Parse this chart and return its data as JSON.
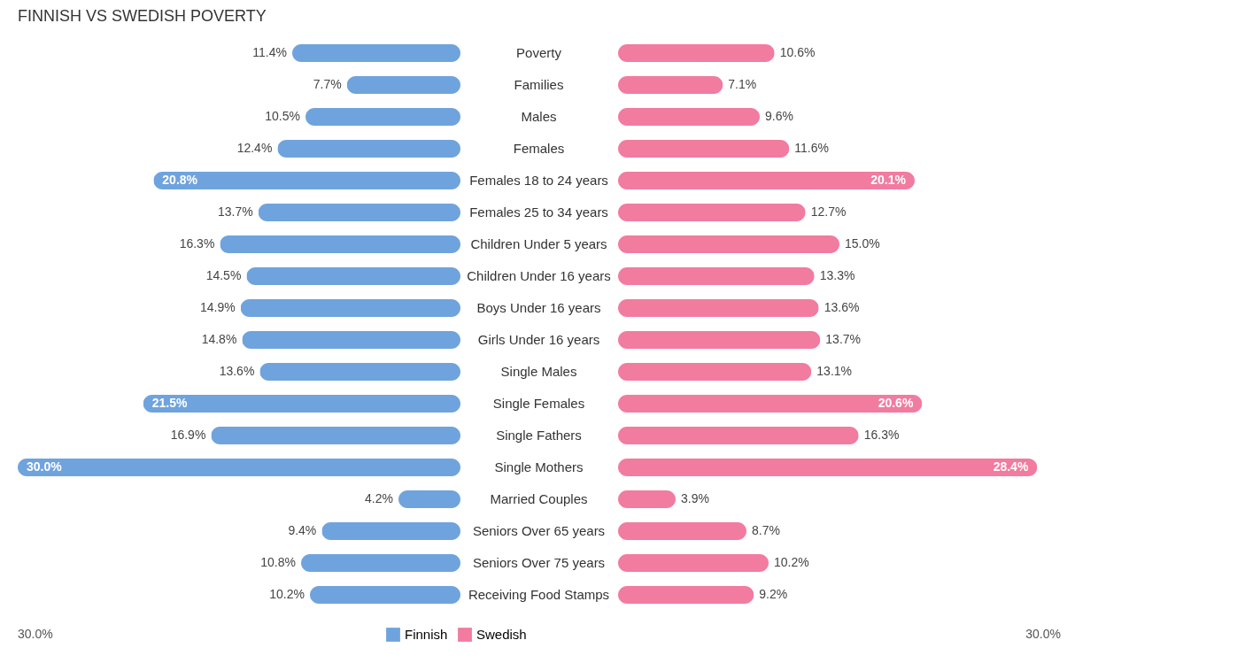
{
  "chart_data": [
    {
      "type": "bar",
      "orientation": "horizontal",
      "title": "FINNISH VS SWEDISH POVERTY",
      "categories": [
        "Poverty",
        "Families",
        "Males",
        "Females",
        "Females 18 to 24 years",
        "Females 25 to 34 years",
        "Children Under 5 years",
        "Children Under 16 years",
        "Boys Under 16 years",
        "Girls Under 16 years",
        "Single Males",
        "Single Females",
        "Single Fathers",
        "Single Mothers",
        "Married Couples",
        "Seniors Over 65 years",
        "Seniors Over 75 years",
        "Receiving Food Stamps"
      ],
      "series": [
        {
          "name": "Finnish",
          "color": "#6fa3dd",
          "values": [
            11.4,
            7.7,
            10.5,
            12.4,
            20.8,
            13.7,
            16.3,
            14.5,
            14.9,
            14.8,
            13.6,
            21.5,
            16.9,
            30.0,
            4.2,
            9.4,
            10.8,
            10.2
          ],
          "value_labels": [
            "11.4%",
            "7.7%",
            "10.5%",
            "12.4%",
            "20.8%",
            "13.7%",
            "16.3%",
            "14.5%",
            "14.9%",
            "14.8%",
            "13.6%",
            "21.5%",
            "16.9%",
            "30.0%",
            "4.2%",
            "9.4%",
            "10.8%",
            "10.2%"
          ]
        }
      ],
      "annotations": [
        "30.0%"
      ],
      "legend": "bottom"
    },
    {
      "type": "bar",
      "orientation": "horizontal",
      "categories": [
        null,
        null,
        null,
        null,
        null,
        null,
        null,
        null,
        null,
        null,
        null,
        null,
        null,
        null,
        null,
        null,
        null,
        null
      ],
      "series": [
        {
          "name": "Swedish",
          "color": "#f27ba0",
          "values": [
            10.6,
            7.1,
            9.6,
            11.6,
            20.1,
            12.7,
            15.0,
            13.3,
            13.6,
            13.7,
            13.1,
            20.6,
            16.3,
            28.4,
            3.9,
            8.7,
            10.2,
            9.2
          ],
          "value_labels": [
            "10.6%",
            "7.1%",
            "9.6%",
            "11.6%",
            "20.1%",
            "12.7%",
            "15.0%",
            "13.3%",
            "13.6%",
            "13.7%",
            "13.1%",
            "20.6%",
            "16.3%",
            "28.4%",
            "3.9%",
            "8.7%",
            "10.2%",
            "9.2%"
          ]
        }
      ],
      "annotations": [
        "30.0%"
      ],
      "legend": "bottom"
    }
  ]
}
